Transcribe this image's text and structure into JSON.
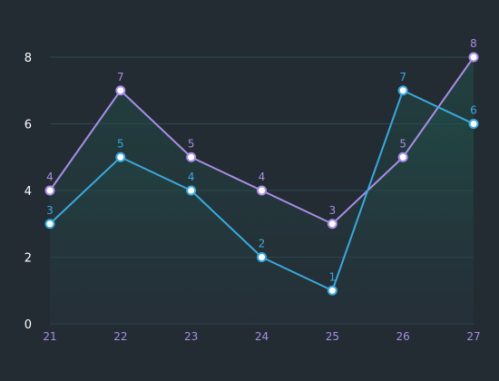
{
  "chart_data": {
    "type": "line",
    "title": "",
    "xlabel": "",
    "ylabel": "",
    "x": [
      "21",
      "22",
      "23",
      "24",
      "25",
      "26",
      "27"
    ],
    "ylim": [
      0,
      8
    ],
    "yticks": [
      "0",
      "2",
      "4",
      "6",
      "8"
    ],
    "grid": true,
    "legend": "none",
    "series": [
      {
        "values": [
          4,
          7,
          5,
          4,
          3,
          5,
          8
        ],
        "labels": [
          "4",
          "7",
          "5",
          "4",
          "3",
          "5",
          "8"
        ],
        "color": "#a98ee6",
        "label_color": "#a98ee6"
      },
      {
        "values": [
          3,
          5,
          4,
          2,
          1,
          7,
          6
        ],
        "labels": [
          "3",
          "5",
          "4",
          "2",
          "1",
          "7",
          "6"
        ],
        "color": "#3aa9dd",
        "label_color": "#3aa9dd"
      }
    ],
    "colors": {
      "background": "#232b33",
      "grid": "#2e4a55",
      "area_top": "#1f5a50",
      "area_bottom": "#27323b",
      "tick_x": "#a98ee6",
      "tick_y": "#ffffff",
      "marker_fill": "#ffffff"
    }
  }
}
